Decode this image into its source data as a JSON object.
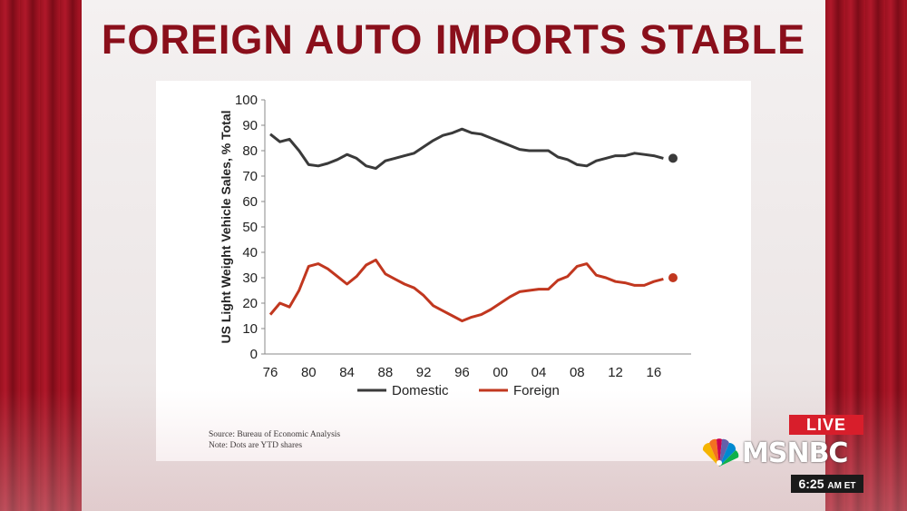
{
  "headline": "FOREIGN AUTO IMPORTS STABLE",
  "broadcast": {
    "live_label": "LIVE",
    "network_name": "MSNBC",
    "time": "6:25",
    "time_suffix": "AM ET"
  },
  "notes": {
    "source": "Source: Bureau of Economic Analysis",
    "dots": "Note: Dots are YTD shares"
  },
  "colors": {
    "headline": "#8a0f1b",
    "domestic": "#3a3a3a",
    "foreign": "#c1371f",
    "live": "#d81e2b"
  },
  "chart_data": {
    "type": "line",
    "ylabel": "US Light Weight Vehicle Sales, % Total",
    "xlabel": "",
    "ylim": [
      0,
      100
    ],
    "yticks": [
      0,
      10,
      20,
      30,
      40,
      50,
      60,
      70,
      80,
      90,
      100
    ],
    "xlim": [
      1976,
      2019
    ],
    "xticks": [
      1976,
      1980,
      1984,
      1988,
      1992,
      1996,
      2000,
      2004,
      2008,
      2012,
      2016
    ],
    "xtick_labels": [
      "76",
      "80",
      "84",
      "88",
      "92",
      "96",
      "00",
      "04",
      "08",
      "12",
      "16"
    ],
    "legend_position": "bottom",
    "grid": false,
    "x": [
      1976,
      1977,
      1978,
      1979,
      1980,
      1981,
      1982,
      1983,
      1984,
      1985,
      1986,
      1987,
      1988,
      1989,
      1990,
      1991,
      1992,
      1993,
      1994,
      1995,
      1996,
      1997,
      1998,
      1999,
      2000,
      2001,
      2002,
      2003,
      2004,
      2005,
      2006,
      2007,
      2008,
      2009,
      2010,
      2011,
      2012,
      2013,
      2014,
      2015,
      2016,
      2017
    ],
    "series": [
      {
        "name": "Domestic",
        "color": "#3a3a3a",
        "values": [
          86.5,
          83.5,
          84.5,
          80,
          74.5,
          74,
          75,
          76.5,
          78.5,
          77,
          74,
          73,
          76,
          77,
          78,
          79,
          81.5,
          84,
          86,
          87,
          88.5,
          87,
          86.5,
          85,
          83.5,
          82,
          80.5,
          80,
          80,
          80,
          77.5,
          76.5,
          74.5,
          74,
          76,
          77,
          78,
          78,
          79,
          78.5,
          78,
          77
        ],
        "ytd": {
          "x": 2018,
          "value": 77
        }
      },
      {
        "name": "Foreign",
        "color": "#c1371f",
        "values": [
          15.5,
          20,
          18.5,
          25,
          34.5,
          35.5,
          33.5,
          30.5,
          27.5,
          30.5,
          35,
          37,
          31.5,
          29.5,
          27.5,
          26,
          23,
          19,
          17,
          15,
          13,
          14.5,
          15.5,
          17.5,
          20,
          22.5,
          24.5,
          25,
          25.5,
          25.5,
          29,
          30.5,
          34.5,
          35.5,
          31,
          30,
          28.5,
          28,
          27,
          27,
          28.5,
          29.5
        ],
        "ytd": {
          "x": 2018,
          "value": 30
        }
      }
    ]
  }
}
